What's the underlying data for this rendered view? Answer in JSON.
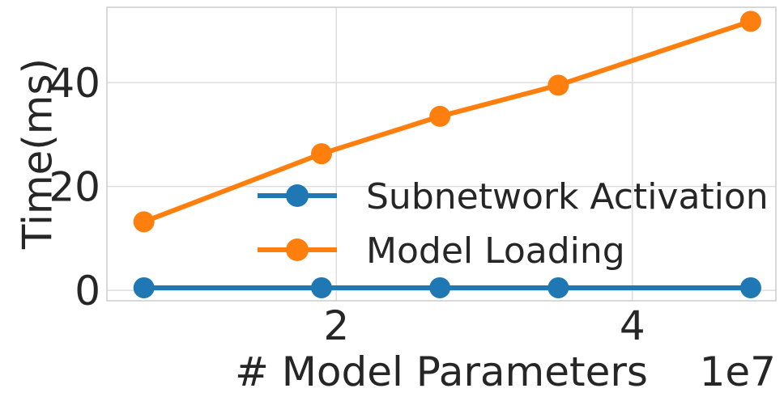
{
  "chart_data": {
    "type": "line",
    "title": "",
    "xlabel": "# Model Parameters",
    "ylabel": "Time(ms)",
    "x_offset_label": "1e7",
    "x": [
      0.7,
      1.9,
      2.7,
      3.5,
      4.8
    ],
    "xlim": [
      0.45,
      4.97
    ],
    "ylim": [
      -2,
      54.5
    ],
    "xticks": [
      2,
      4
    ],
    "xtick_labels": [
      "2",
      "4"
    ],
    "yticks": [
      0,
      20,
      40
    ],
    "ytick_labels": [
      "0",
      "20",
      "40"
    ],
    "grid": true,
    "legend_position": "center-right",
    "series": [
      {
        "name": "Subnetwork Activation",
        "color": "#1f77b4",
        "values": [
          0.5,
          0.5,
          0.5,
          0.5,
          0.5
        ]
      },
      {
        "name": "Model Loading",
        "color": "#ff7f0e",
        "values": [
          13.2,
          26.3,
          33.5,
          39.5,
          51.8
        ]
      }
    ]
  }
}
